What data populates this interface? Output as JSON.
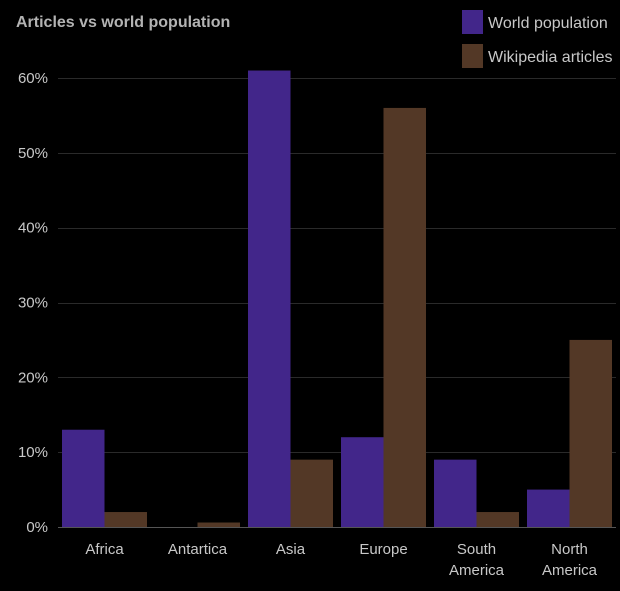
{
  "chart_data": {
    "type": "bar",
    "title": "Articles vs world population",
    "xlabel": "",
    "ylabel": "",
    "categories": [
      [
        "Africa"
      ],
      [
        "Antartica"
      ],
      [
        "Asia"
      ],
      [
        "Europe"
      ],
      [
        "South",
        "America"
      ],
      [
        "North",
        "America"
      ]
    ],
    "series": [
      {
        "name": "World population",
        "color": "#42268a",
        "values": [
          13,
          0,
          61,
          12,
          9,
          5
        ]
      },
      {
        "name": "Wikipedia articles",
        "color": "#533826",
        "values": [
          2,
          0.6,
          9,
          56,
          2,
          25
        ]
      }
    ],
    "ylim": [
      0,
      60
    ],
    "yticks": [
      0,
      10,
      20,
      30,
      40,
      50,
      60
    ],
    "ytick_labels": [
      "0%",
      "10%",
      "20%",
      "30%",
      "40%",
      "50%",
      "60%"
    ],
    "grid": true,
    "legend": "top-right",
    "background": "#000000"
  }
}
